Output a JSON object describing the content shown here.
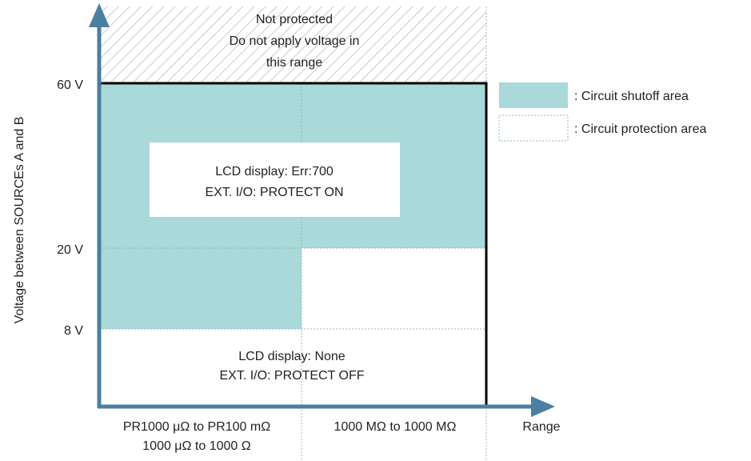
{
  "colors": {
    "shutoff_fill": "#a9d9d8",
    "axis_arrow": "#4a7fa0",
    "divider_dotted": "#8fb8c9",
    "frame": "#000000",
    "hatch": "#cccccc",
    "text": "#231f20"
  },
  "top_note": {
    "line1": "Not protected",
    "line2": "Do not apply voltage in",
    "line3": "this range"
  },
  "y_axis": {
    "label": "Voltage between SOURCEs A and B",
    "ticks": [
      "60 V",
      "20 V",
      "8 V"
    ]
  },
  "x_axis": {
    "label": "Range",
    "categories": [
      {
        "line1": "PR1000 μΩ to PR100 mΩ",
        "line2": "1000 μΩ to 1000 Ω"
      },
      {
        "line1": "1000 MΩ to 1000 MΩ",
        "line2": ""
      }
    ]
  },
  "shutoff_box": {
    "line1": "LCD display: Err:700",
    "line2": "EXT. I/O: PROTECT ON"
  },
  "protect_box": {
    "line1": "LCD display: None",
    "line2": "EXT. I/O: PROTECT OFF"
  },
  "legend": {
    "shutoff": ": Circuit shutoff area",
    "protection": ": Circuit protection area"
  }
}
